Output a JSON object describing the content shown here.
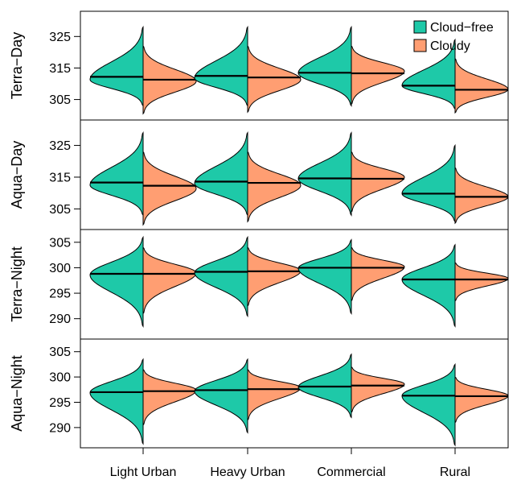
{
  "chart_data": {
    "type": "split-violin",
    "categories": [
      "Light Urban",
      "Heavy Urban",
      "Commercial",
      "Rural"
    ],
    "legend": [
      {
        "label": "Cloud−free",
        "color": "#1ec9a8"
      },
      {
        "label": "Cloudy",
        "color": "#ff9e72"
      }
    ],
    "legend_position": "top-right",
    "panels": [
      {
        "ylabel": "Terra−Day",
        "ylim": [
          298.5,
          333
        ],
        "yticks": [
          325,
          315,
          305
        ],
        "violins": [
          {
            "cloudfree": {
              "mean": 312.2,
              "peak": 311.3,
              "min": 303,
              "max": 328
            },
            "cloudy": {
              "mean": 311.3,
              "peak": 310.8,
              "min": 300.5,
              "max": 322
            }
          },
          {
            "cloudfree": {
              "mean": 312.5,
              "peak": 311.8,
              "min": 303,
              "max": 328
            },
            "cloudy": {
              "mean": 312,
              "peak": 311.3,
              "min": 301,
              "max": 322
            }
          },
          {
            "cloudfree": {
              "mean": 313.5,
              "peak": 313.4,
              "min": 303,
              "max": 328
            },
            "cloudy": {
              "mean": 313.3,
              "peak": 314,
              "min": 303.5,
              "max": 322
            }
          },
          {
            "cloudfree": {
              "mean": 309.4,
              "peak": 309.4,
              "min": 302,
              "max": 324
            },
            "cloudy": {
              "mean": 308.1,
              "peak": 308.2,
              "min": 300.8,
              "max": 318
            }
          }
        ]
      },
      {
        "ylabel": "Aqua−Day",
        "ylim": [
          298.5,
          333
        ],
        "yticks": [
          325,
          315,
          305
        ],
        "violins": [
          {
            "cloudfree": {
              "mean": 313.3,
              "peak": 312.5,
              "min": 303,
              "max": 329
            },
            "cloudy": {
              "mean": 312.3,
              "peak": 311.4,
              "min": 300,
              "max": 323
            }
          },
          {
            "cloudfree": {
              "mean": 313.6,
              "peak": 313,
              "min": 303,
              "max": 329
            },
            "cloudy": {
              "mean": 313.2,
              "peak": 312.4,
              "min": 301,
              "max": 323
            }
          },
          {
            "cloudfree": {
              "mean": 314.6,
              "peak": 314.5,
              "min": 303,
              "max": 329
            },
            "cloudy": {
              "mean": 314.5,
              "peak": 315,
              "min": 304,
              "max": 323
            }
          },
          {
            "cloudfree": {
              "mean": 309.8,
              "peak": 309.8,
              "min": 301,
              "max": 325
            },
            "cloudy": {
              "mean": 308.8,
              "peak": 308.8,
              "min": 300.5,
              "max": 318
            }
          }
        ]
      },
      {
        "ylabel": "Terra−Night",
        "ylim": [
          286,
          307.5
        ],
        "yticks": [
          305,
          300,
          295,
          290
        ],
        "violins": [
          {
            "cloudfree": {
              "mean": 298.8,
              "peak": 298.6,
              "min": 288.5,
              "max": 306
            },
            "cloudy": {
              "mean": 298.8,
              "peak": 299,
              "min": 291,
              "max": 304
            }
          },
          {
            "cloudfree": {
              "mean": 299.2,
              "peak": 299,
              "min": 290.5,
              "max": 306
            },
            "cloudy": {
              "mean": 299.3,
              "peak": 299.4,
              "min": 292.5,
              "max": 304
            }
          },
          {
            "cloudfree": {
              "mean": 300,
              "peak": 299.9,
              "min": 291,
              "max": 305.5
            },
            "cloudy": {
              "mean": 300,
              "peak": 300.2,
              "min": 293.5,
              "max": 304
            }
          },
          {
            "cloudfree": {
              "mean": 297.7,
              "peak": 297.7,
              "min": 288.5,
              "max": 304.5
            },
            "cloudy": {
              "mean": 297.7,
              "peak": 297.9,
              "min": 293.5,
              "max": 301
            }
          }
        ]
      },
      {
        "ylabel": "Aqua−Night",
        "ylim": [
          286,
          307.5
        ],
        "yticks": [
          305,
          300,
          295,
          290
        ],
        "violins": [
          {
            "cloudfree": {
              "mean": 297,
              "peak": 296.9,
              "min": 286.8,
              "max": 303.5
            },
            "cloudy": {
              "mean": 297.2,
              "peak": 297.4,
              "min": 290.5,
              "max": 301.5
            }
          },
          {
            "cloudfree": {
              "mean": 297.4,
              "peak": 297.2,
              "min": 289,
              "max": 303.5
            },
            "cloudy": {
              "mean": 297.6,
              "peak": 297.9,
              "min": 291.5,
              "max": 301.5
            }
          },
          {
            "cloudfree": {
              "mean": 298.1,
              "peak": 298,
              "min": 292,
              "max": 304.5
            },
            "cloudy": {
              "mean": 298.3,
              "peak": 298.6,
              "min": 293,
              "max": 302
            }
          },
          {
            "cloudfree": {
              "mean": 296.3,
              "peak": 296.3,
              "min": 286.5,
              "max": 302.5
            },
            "cloudy": {
              "mean": 296.2,
              "peak": 296.3,
              "min": 291,
              "max": 300
            }
          }
        ]
      }
    ]
  }
}
